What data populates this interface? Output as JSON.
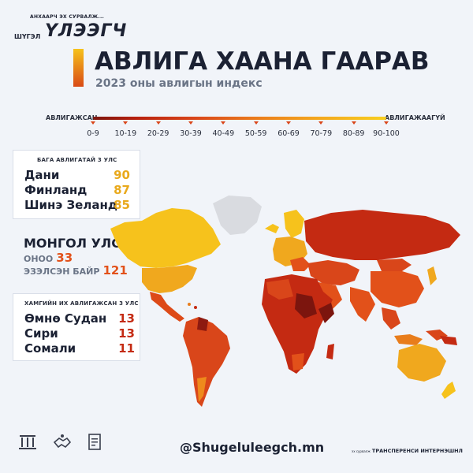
{
  "brand": {
    "tagline": "АНХААРЧ ЭХ СУРВАЛЖ...",
    "small": "ШҮГЭЛ",
    "name": "ҮЛЭЭГЧ"
  },
  "header": {
    "title": "АВЛИГА ХААНА ГААРАВ",
    "subtitle": "2023 оны авлигын индекс"
  },
  "scale": {
    "left_label": "АВЛИГАЖСАН",
    "right_label": "АВЛИГАЖААГҮЙ",
    "ranges": [
      "0-9",
      "10-19",
      "20-29",
      "30-39",
      "40-49",
      "50-59",
      "60-69",
      "70-79",
      "80-89",
      "90-100"
    ]
  },
  "least_corrupt": {
    "heading": "БАГА АВЛИГАТАЙ 3 УЛС",
    "rows": [
      {
        "name": "Дани",
        "score": "90"
      },
      {
        "name": "Финланд",
        "score": "87"
      },
      {
        "name": "Шинэ Зеланд",
        "score": "85"
      }
    ]
  },
  "mongolia": {
    "name": "МОНГОЛ УЛС",
    "score_label": "ОНОО",
    "score": "33",
    "rank_label": "ЭЗЭЛСЭН БАЙР",
    "rank": "121"
  },
  "most_corrupt": {
    "heading": "ХАМГИЙН ИХ АВЛИГАЖСАН 3 УЛС",
    "rows": [
      {
        "name": "Өмнө Судан",
        "score": "13"
      },
      {
        "name": "Сири",
        "score": "13"
      },
      {
        "name": "Сомали",
        "score": "11"
      }
    ]
  },
  "footer": {
    "handle": "@Shugeluleegch.mn",
    "credit_prefix": "эх сурвалж",
    "credit": "ТРАНСПЕРЕНСИ ИНТЕРНЭШНЛ"
  },
  "colors": {
    "most_corrupt": "#7c150e",
    "corrupt": "#c42a12",
    "mid": "#e2511a",
    "orange": "#ee8a1c",
    "least_corrupt": "#f6c21c",
    "no_data": "#d9dbe0"
  },
  "icons": [
    "court-icon",
    "handshake-icon",
    "document-icon"
  ]
}
